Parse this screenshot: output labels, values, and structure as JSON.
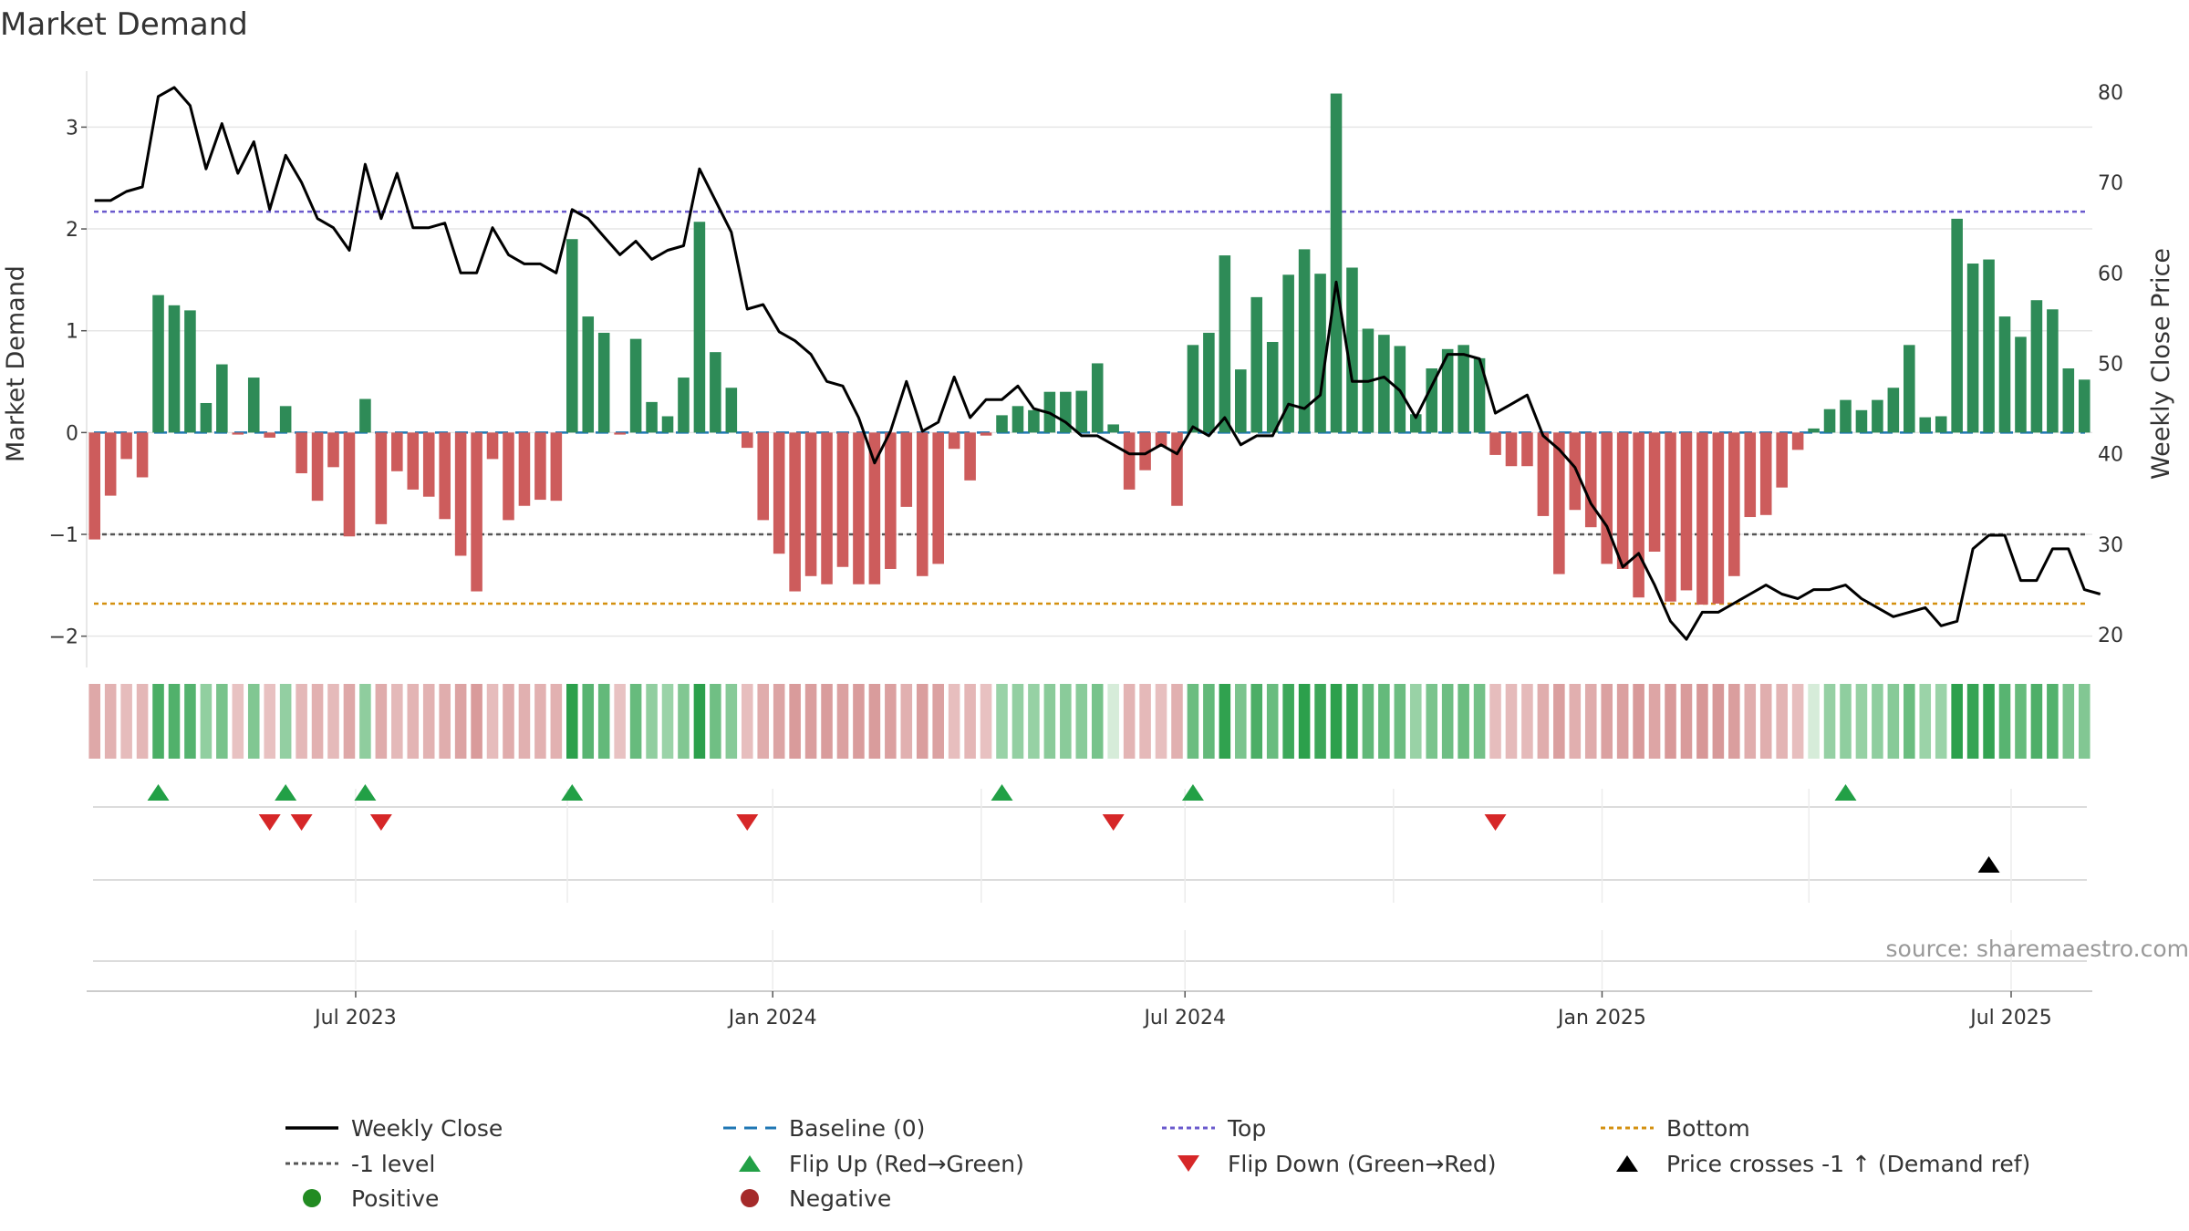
{
  "title": "Market Demand",
  "source": "source: sharemaestro.com",
  "colors": {
    "positive_bar": "#2e8b57",
    "negative_bar": "#cd5c5c",
    "close_line": "#000000",
    "baseline": "#1f77b4",
    "top": "#6a5acd",
    "bottom": "#d4900f",
    "minus_one": "#555555",
    "flip_up": "#22a046",
    "flip_down": "#d62728",
    "cross_marker": "#000000",
    "grid": "#e6e6e6",
    "positive_dot": "#228b22",
    "negative_dot": "#a52a2a"
  },
  "chart_data": {
    "type": "bar",
    "title": "Market Demand",
    "ylabel": "Market Demand",
    "y2label": "Weekly Close Price",
    "ylim": [
      -2.2,
      3.55
    ],
    "y2lim": [
      17.6,
      82.3
    ],
    "yticks": [
      {
        "value": 3,
        "label": "3"
      },
      {
        "value": 2,
        "label": "2"
      },
      {
        "value": 1,
        "label": "1"
      },
      {
        "value": 0,
        "label": "0"
      },
      {
        "value": -1,
        "label": "−1"
      },
      {
        "value": -2,
        "label": "−2"
      }
    ],
    "y2ticks": [
      {
        "value": 80,
        "label": "80"
      },
      {
        "value": 70,
        "label": "70"
      },
      {
        "value": 60,
        "label": "60"
      },
      {
        "value": 50,
        "label": "50"
      },
      {
        "value": 40,
        "label": "40"
      },
      {
        "value": 30,
        "label": "30"
      },
      {
        "value": 20,
        "label": "20"
      }
    ],
    "xticks": [
      {
        "index": 16.4,
        "label": "Jul 2023"
      },
      {
        "index": 42.6,
        "label": "Jan 2024"
      },
      {
        "index": 68.5,
        "label": "Jul 2024"
      },
      {
        "index": 94.7,
        "label": "Jan 2025"
      },
      {
        "index": 120.4,
        "label": "Jul 2025"
      }
    ],
    "reference_lines": {
      "top": 2.17,
      "minus_one": -1.0,
      "bottom": -1.68,
      "baseline": 0
    },
    "demand": [
      -1.05,
      -0.62,
      -0.26,
      -0.44,
      1.35,
      1.25,
      1.2,
      0.29,
      0.67,
      -0.02,
      0.54,
      -0.05,
      0.26,
      -0.4,
      -0.67,
      -0.34,
      -1.02,
      0.33,
      -0.9,
      -0.38,
      -0.56,
      -0.63,
      -0.85,
      -1.21,
      -1.56,
      -0.26,
      -0.86,
      -0.72,
      -0.66,
      -0.67,
      1.9,
      1.14,
      0.98,
      -0.02,
      0.92,
      0.3,
      0.16,
      0.54,
      2.07,
      0.79,
      0.44,
      -0.15,
      -0.86,
      -1.19,
      -1.56,
      -1.41,
      -1.49,
      -1.32,
      -1.49,
      -1.49,
      -1.34,
      -0.73,
      -1.41,
      -1.29,
      -0.16,
      -0.47,
      -0.03,
      0.17,
      0.26,
      0.22,
      0.4,
      0.4,
      0.41,
      0.68,
      0.08,
      -0.56,
      -0.37,
      -0.14,
      -0.72,
      0.86,
      0.98,
      1.74,
      0.62,
      1.33,
      0.89,
      1.55,
      1.8,
      1.56,
      3.33,
      1.62,
      1.02,
      0.96,
      0.85,
      0.18,
      0.63,
      0.82,
      0.86,
      0.73,
      -0.22,
      -0.33,
      -0.33,
      -0.82,
      -1.39,
      -0.76,
      -0.93,
      -1.29,
      -1.34,
      -1.62,
      -1.17,
      -1.66,
      -1.55,
      -1.69,
      -1.68,
      -1.41,
      -0.83,
      -0.81,
      -0.54,
      -0.17,
      0.04,
      0.23,
      0.32,
      0.22,
      0.32,
      0.44,
      0.86,
      0.15,
      0.16,
      2.1,
      1.66,
      1.7,
      1.14,
      0.94,
      1.3,
      1.21,
      0.63,
      0.52
    ],
    "weekly_close": [
      68,
      68,
      69,
      69.5,
      79.5,
      80.5,
      78.5,
      71.5,
      76.5,
      71,
      74.5,
      67,
      73,
      70,
      66,
      65,
      62.5,
      72,
      66,
      71,
      65,
      65,
      65.5,
      60,
      60,
      65,
      62,
      61,
      61,
      60,
      67,
      66,
      64,
      62,
      63.5,
      61.5,
      62.5,
      63,
      71.5,
      68,
      64.5,
      56,
      56.5,
      53.5,
      52.5,
      51,
      48,
      47.5,
      44,
      39,
      42.5,
      48,
      42.5,
      43.5,
      48.5,
      44,
      46,
      46,
      47.5,
      45,
      44.5,
      43.5,
      42,
      42,
      41,
      40,
      40,
      41,
      40,
      43,
      42,
      44,
      41,
      42,
      42,
      45.5,
      45,
      46.5,
      59,
      48,
      48,
      48.5,
      47,
      44,
      47.5,
      51,
      51,
      50.5,
      44.5,
      45.5,
      46.5,
      42,
      40.5,
      38.5,
      34.5,
      32,
      27.5,
      29,
      25.5,
      21.5,
      19.5,
      22.5,
      22.5,
      23.5,
      24.5,
      25.5,
      24.5,
      24,
      25,
      25,
      25.5,
      24,
      23,
      22,
      22.5,
      23,
      21,
      21.5,
      29.5,
      31,
      31,
      26,
      26,
      29.5,
      29.5,
      25,
      24.5
    ],
    "flip_up_indices": [
      4,
      12,
      17,
      30,
      57,
      69,
      110
    ],
    "flip_down_indices": [
      11,
      13,
      18,
      41,
      64,
      88
    ],
    "price_cross_indices": [
      119
    ],
    "legend": {
      "items": [
        {
          "label": "Weekly Close",
          "kind": "solid",
          "color": "#000000"
        },
        {
          "label": "Baseline (0)",
          "kind": "dashed",
          "color": "#1f77b4"
        },
        {
          "label": "Top",
          "kind": "dotted",
          "color": "#6a5acd"
        },
        {
          "label": "Bottom",
          "kind": "dotted",
          "color": "#d4900f"
        },
        {
          "label": "-1 level",
          "kind": "dotted",
          "color": "#555555"
        },
        {
          "label": "Flip Up (Red→Green)",
          "kind": "tri-up",
          "color": "#22a046"
        },
        {
          "label": "Flip Down (Green→Red)",
          "kind": "tri-down",
          "color": "#d62728"
        },
        {
          "label": "Price crosses -1 ↑ (Demand ref)",
          "kind": "tri-up",
          "color": "#000000"
        },
        {
          "label": "Positive",
          "kind": "dot",
          "color": "#228b22"
        },
        {
          "label": "Negative",
          "kind": "dot",
          "color": "#a52a2a"
        }
      ]
    }
  }
}
